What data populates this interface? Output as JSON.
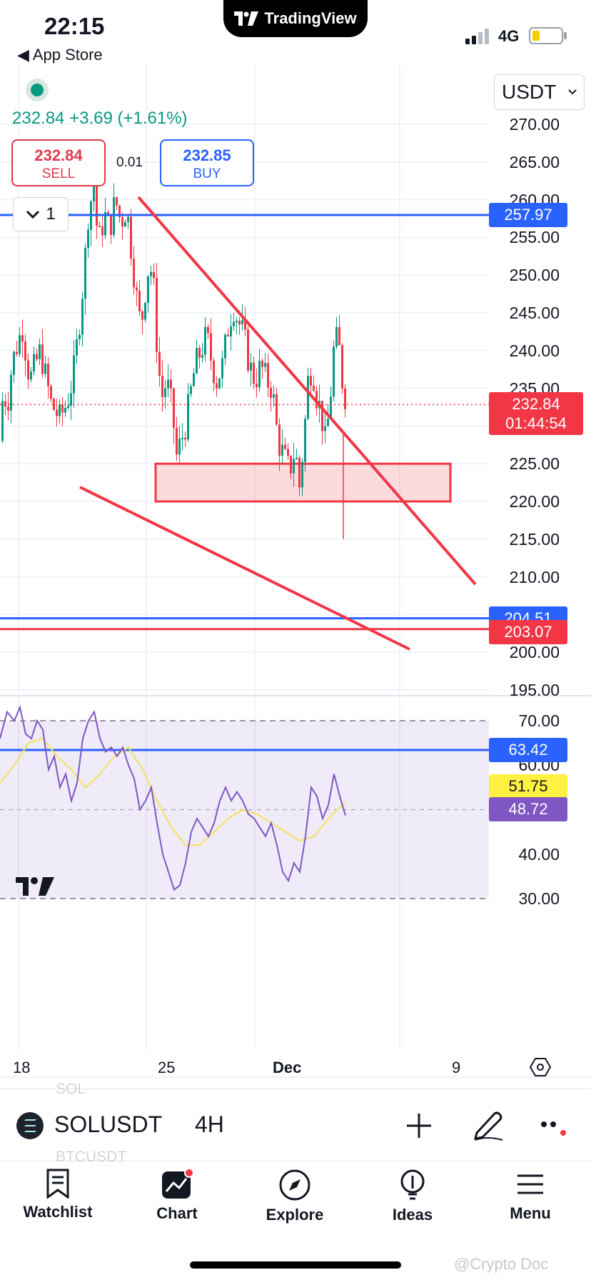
{
  "status_bar": {
    "time": "22:15",
    "back_label": "◀ App Store",
    "network": "4G"
  },
  "app": {
    "name": "TradingView"
  },
  "header": {
    "quote": "232.84  +3.69 (+1.61%)",
    "sell": {
      "price": "232.84",
      "label": "SELL"
    },
    "buy": {
      "price": "232.85",
      "label": "BUY"
    },
    "spread": "0.01",
    "interval_count": "1",
    "currency": "USDT"
  },
  "price_axis": {
    "ticks": [
      "270.00",
      "265.00",
      "260.00",
      "255.00",
      "250.00",
      "245.00",
      "240.00",
      "235.00",
      "225.00",
      "220.00",
      "215.00",
      "210.00",
      "200.00",
      "195.00"
    ],
    "badges": {
      "resistance": "257.97",
      "current_price": "232.84",
      "countdown": "01:44:54",
      "level_blue": "204.51",
      "level_red": "203.07"
    }
  },
  "rsi_axis": {
    "ticks": [
      "70.00",
      "60.00",
      "40.00",
      "30.00"
    ],
    "badges": {
      "level": "63.42",
      "ma": "51.75",
      "rsi": "48.72"
    }
  },
  "time_axis": {
    "ticks": [
      "18",
      "25",
      "Dec",
      "9"
    ]
  },
  "symbol_bar": {
    "symbol": "SOLUSDT",
    "timeframe": "4H",
    "ghost_above": "SOL",
    "ghost_below": "BTCUSDT"
  },
  "nav": [
    {
      "label": "Watchlist"
    },
    {
      "label": "Chart"
    },
    {
      "label": "Explore"
    },
    {
      "label": "Ideas"
    },
    {
      "label": "Menu"
    }
  ],
  "watermark": "@Crypto Doc",
  "colors": {
    "up": "#089981",
    "down": "#f23645",
    "blue": "#2962ff",
    "rsi": "#7e57c2",
    "rsi_ma": "#f7e15c"
  },
  "chart_data": {
    "type": "candlestick",
    "symbol": "SOLUSDT",
    "interval": "4H",
    "current_price": 232.84,
    "ylim": [
      192,
      272
    ],
    "horizontal_levels": [
      257.97,
      204.51,
      203.07
    ],
    "support_zone": [
      220,
      225
    ],
    "rsi": {
      "value": 48.72,
      "ma": 51.75,
      "ylim": [
        28,
        76
      ],
      "bands": [
        70,
        30
      ],
      "level": 63.42
    }
  }
}
